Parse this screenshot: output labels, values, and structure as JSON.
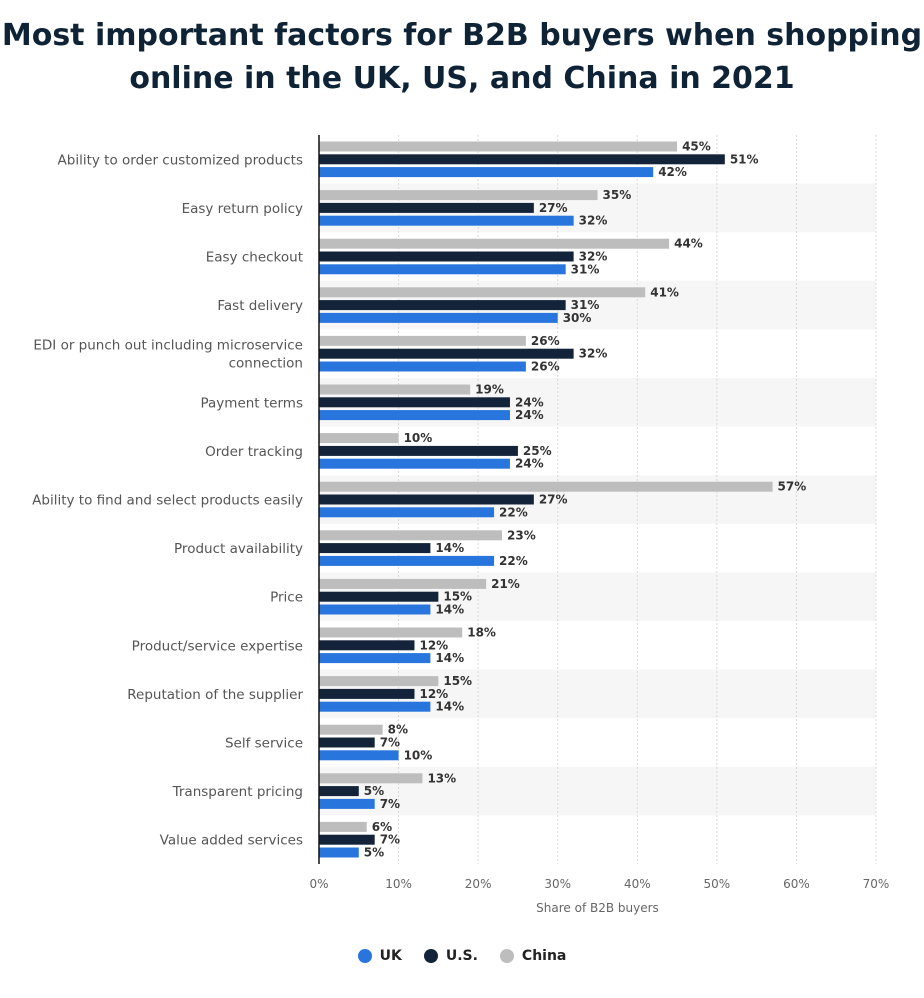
{
  "title_lines": [
    "Most important factors for B2B buyers when shopping",
    "online in the UK, US, and China in 2021"
  ],
  "chart_data": {
    "type": "bar",
    "orientation": "horizontal",
    "title": "Most important factors for B2B buyers when shopping online in the UK, US, and China in 2021",
    "xlabel": "Share of B2B buyers",
    "ylabel": "",
    "xlim": [
      0,
      70
    ],
    "x_ticks": [
      "0%",
      "10%",
      "20%",
      "30%",
      "40%",
      "50%",
      "60%",
      "70%"
    ],
    "grid": "vertical dashed",
    "legend_position": "bottom-center",
    "categories": [
      [
        "Ability to order customized products"
      ],
      [
        "Easy return policy"
      ],
      [
        "Easy checkout"
      ],
      [
        "Fast delivery"
      ],
      [
        "EDI or punch out including microservice",
        "connection"
      ],
      [
        "Payment terms"
      ],
      [
        "Order tracking"
      ],
      [
        "Ability to find and select products easily"
      ],
      [
        "Product availability"
      ],
      [
        "Price"
      ],
      [
        "Product/service expertise"
      ],
      [
        "Reputation of the supplier"
      ],
      [
        "Self service"
      ],
      [
        "Transparent pricing"
      ],
      [
        "Value added services"
      ]
    ],
    "series": [
      {
        "name": "China",
        "color": "#bdbdbd",
        "values": [
          45,
          35,
          44,
          41,
          26,
          19,
          10,
          57,
          23,
          21,
          18,
          15,
          8,
          13,
          6
        ]
      },
      {
        "name": "U.S.",
        "color": "#13243a",
        "values": [
          51,
          27,
          32,
          31,
          32,
          24,
          25,
          27,
          14,
          15,
          12,
          12,
          7,
          5,
          7
        ]
      },
      {
        "name": "UK",
        "color": "#2876dd",
        "values": [
          42,
          32,
          31,
          30,
          26,
          24,
          24,
          22,
          22,
          14,
          14,
          14,
          10,
          7,
          5
        ]
      }
    ],
    "value_suffix": "%"
  },
  "legend": [
    {
      "label": "UK",
      "color": "#2876dd"
    },
    {
      "label": "U.S.",
      "color": "#13243a"
    },
    {
      "label": "China",
      "color": "#bdbdbd"
    }
  ]
}
